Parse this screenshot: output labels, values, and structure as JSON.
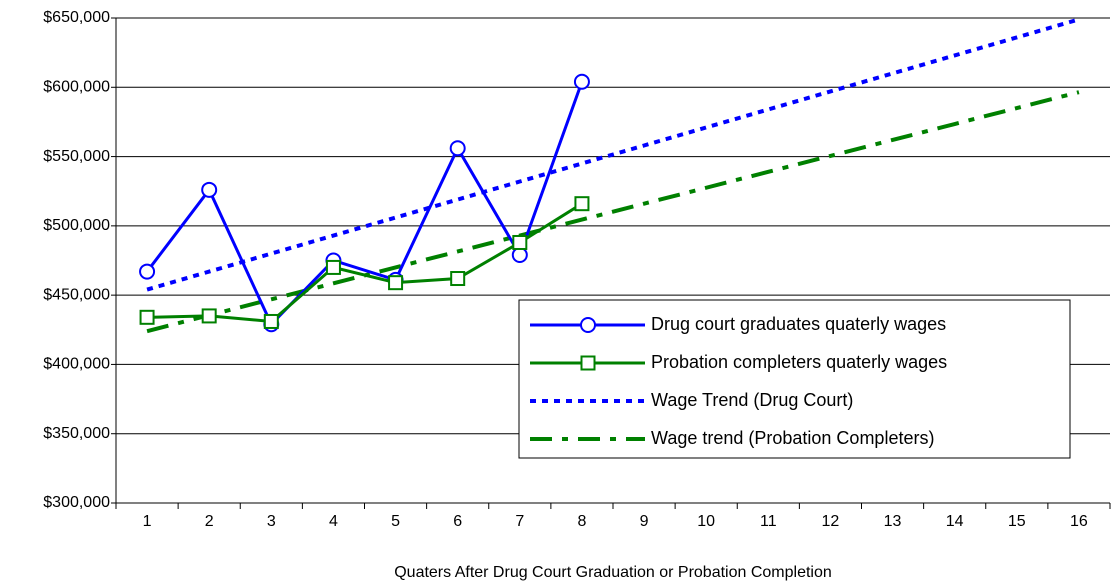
{
  "chart_data": {
    "type": "line",
    "x_label": "Quaters After Drug Court Graduation or Probation Completion",
    "categories": [
      "1",
      "2",
      "3",
      "4",
      "5",
      "6",
      "7",
      "8",
      "9",
      "10",
      "11",
      "12",
      "13",
      "14",
      "15",
      "16"
    ],
    "ylim": [
      300000,
      650000
    ],
    "yticks": [
      {
        "value": 300000,
        "label": "$300,000"
      },
      {
        "value": 350000,
        "label": "$350,000"
      },
      {
        "value": 400000,
        "label": "$400,000"
      },
      {
        "value": 450000,
        "label": "$450,000"
      },
      {
        "value": 500000,
        "label": "$500,000"
      },
      {
        "value": 550000,
        "label": "$550,000"
      },
      {
        "value": 600000,
        "label": "$600,000"
      },
      {
        "value": 650000,
        "label": "$650,000"
      }
    ],
    "grid": true,
    "legend": "right",
    "series": [
      {
        "name": "Drug court graduates quaterly wages",
        "color": "#0000ff",
        "marker": "circle",
        "dash": "solid",
        "values": [
          467000,
          526000,
          429000,
          475000,
          461000,
          556000,
          479000,
          604000,
          null,
          null,
          null,
          null,
          null,
          null,
          null,
          null
        ]
      },
      {
        "name": "Probation completers quaterly wages",
        "color": "#008000",
        "marker": "square",
        "dash": "solid",
        "values": [
          434000,
          435000,
          431000,
          470000,
          459000,
          462000,
          488000,
          516000,
          null,
          null,
          null,
          null,
          null,
          null,
          null,
          null
        ]
      },
      {
        "name": "Wage Trend (Drug Court)",
        "color": "#0000ff",
        "marker": null,
        "dash": "dotted",
        "values": [
          454000,
          467000,
          480000,
          493000,
          506000,
          519000,
          532000,
          545000,
          558000,
          571000,
          584000,
          597000,
          610000,
          623000,
          636000,
          649000
        ]
      },
      {
        "name": "Wage trend (Probation Completers)",
        "color": "#008000",
        "marker": null,
        "dash": "dash-dot",
        "values": [
          424000,
          435500,
          447000,
          458500,
          470000,
          481500,
          493000,
          504500,
          516000,
          527500,
          539000,
          550500,
          562000,
          573500,
          585000,
          596500
        ]
      }
    ]
  }
}
